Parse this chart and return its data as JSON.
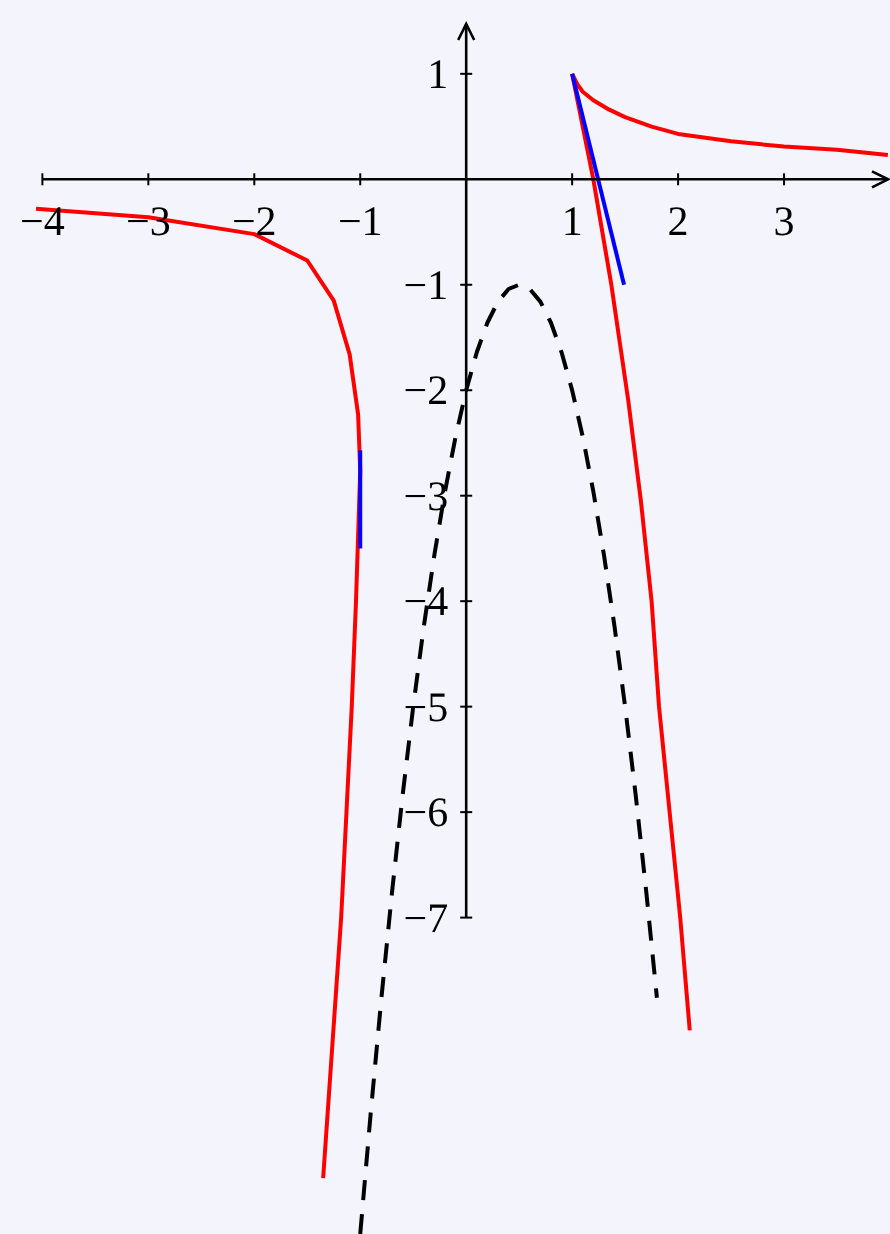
{
  "chart_data": {
    "type": "line",
    "xlim": [
      -4.4,
      4.0
    ],
    "ylim": [
      -10,
      1.7
    ],
    "xticks": [
      {
        "value": -4,
        "label": "−4"
      },
      {
        "value": -3,
        "label": "−3"
      },
      {
        "value": -2,
        "label": "−2"
      },
      {
        "value": -1,
        "label": "−1"
      },
      1,
      2,
      3
    ],
    "yticks": [
      1,
      {
        "value": -1,
        "label": "−1"
      },
      {
        "value": -2,
        "label": "−2"
      },
      {
        "value": -3,
        "label": "−3"
      },
      {
        "value": -4,
        "label": "−4"
      },
      {
        "value": -5,
        "label": "−5"
      },
      {
        "value": -6,
        "label": "−6"
      },
      {
        "value": -7,
        "label": "−7"
      }
    ],
    "marker": "none",
    "series": [
      {
        "color": "#ff0000",
        "line_style": "solid",
        "x": [
          -4.06,
          -3,
          -2,
          -1.5,
          -1.25,
          -1.1,
          -1.02,
          -1,
          -1.04,
          -1.08,
          -1.13,
          -1.18,
          -1.35
        ],
        "values": [
          -0.28,
          -0.36,
          -0.52,
          -0.77,
          -1.15,
          -1.66,
          -2.23,
          -2.76,
          -4,
          -5,
          -6,
          -7,
          -9.47
        ]
      },
      {
        "color": "#ff0000",
        "line_style": "solid",
        "x": [
          1,
          1.05,
          1.1,
          1.2,
          1.35,
          1.5,
          1.75,
          2,
          2.5,
          3,
          3.5,
          3.98
        ],
        "values": [
          1,
          0.9,
          0.83,
          0.75,
          0.66,
          0.59,
          0.5,
          0.43,
          0.36,
          0.31,
          0.28,
          0.23
        ]
      },
      {
        "color": "#ff0000",
        "line_style": "solid",
        "x": [
          1,
          1.1,
          1.2,
          1.37,
          1.53,
          1.65,
          1.75,
          1.82,
          1.92,
          2.02,
          2.11
        ],
        "values": [
          1,
          0.5,
          0,
          -1,
          -2.1,
          -3.06,
          -4,
          -5,
          -6,
          -7,
          -8.07
        ]
      },
      {
        "color": "#000000",
        "line_style": "dashed",
        "x": [
          -1,
          -0.9,
          -0.8,
          -0.7,
          -0.6,
          -0.5,
          -0.4,
          -0.3,
          -0.2,
          -0.1,
          0,
          0.1,
          0.2,
          0.3,
          0.4,
          0.5,
          0.6,
          0.7,
          0.8,
          0.9,
          1,
          1.1,
          1.2,
          1.3,
          1.4,
          1.5,
          1.6,
          1.7,
          1.8
        ],
        "values": [
          -10,
          -8.84,
          -7.76,
          -6.76,
          -5.84,
          -5,
          -4.24,
          -3.56,
          -2.96,
          -2.44,
          -2,
          -1.64,
          -1.36,
          -1.16,
          -1.04,
          -1,
          -1.04,
          -1.16,
          -1.36,
          -1.64,
          -2,
          -2.44,
          -2.96,
          -3.56,
          -4.24,
          -5,
          -5.84,
          -6.76,
          -7.76
        ]
      },
      {
        "color": "#0000ff",
        "line_style": "solid",
        "x": [
          -1,
          -1
        ],
        "values": [
          -2.57,
          -3.5
        ]
      },
      {
        "color": "#0000ff",
        "line_style": "solid",
        "x": [
          1,
          1.49
        ],
        "values": [
          1,
          -1
        ]
      }
    ]
  }
}
